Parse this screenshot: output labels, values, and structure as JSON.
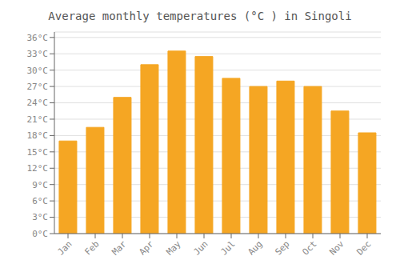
{
  "chart_data": {
    "type": "bar",
    "title": "Average monthly temperatures (°C ) in Singoli",
    "categories": [
      "Jan",
      "Feb",
      "Mar",
      "Apr",
      "May",
      "Jun",
      "Jul",
      "Aug",
      "Sep",
      "Oct",
      "Nov",
      "Dec"
    ],
    "values": [
      17,
      19.5,
      25,
      31,
      33.5,
      32.5,
      28.5,
      27,
      28,
      27,
      22.5,
      18.5
    ],
    "color": "#F5A623",
    "ylim": [
      0,
      37
    ],
    "yticks": [
      {
        "value": 0,
        "label": "0°C"
      },
      {
        "value": 3,
        "label": "3°C"
      },
      {
        "value": 6,
        "label": "6°C"
      },
      {
        "value": 9,
        "label": "9°C"
      },
      {
        "value": 12,
        "label": "12°C"
      },
      {
        "value": 15,
        "label": "15°C"
      },
      {
        "value": 18,
        "label": "18°C"
      },
      {
        "value": 21,
        "label": "21°C"
      },
      {
        "value": 24,
        "label": "24°C"
      },
      {
        "value": 27,
        "label": "27°C"
      },
      {
        "value": 30,
        "label": "30°C"
      },
      {
        "value": 33,
        "label": "33°C"
      },
      {
        "value": 36,
        "label": "36°C"
      }
    ],
    "grid": true
  }
}
